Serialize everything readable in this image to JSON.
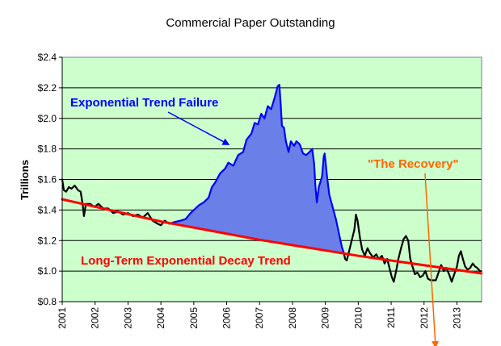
{
  "chart_data": {
    "type": "line",
    "title": "Commercial Paper Outstanding",
    "xlabel": "",
    "ylabel": "Trillions",
    "xlim": [
      2001.0,
      2013.75
    ],
    "ylim": [
      0.8,
      2.4
    ],
    "y_ticks": [
      0.8,
      1.0,
      1.2,
      1.4,
      1.6,
      1.8,
      2.0,
      2.2,
      2.4
    ],
    "y_tick_labels": [
      "$0.8",
      "$1.0",
      "$1.2",
      "$1.4",
      "$1.6",
      "$1.8",
      "$2.0",
      "$2.2",
      "$2.4"
    ],
    "x_ticks": [
      2001,
      2002,
      2003,
      2004,
      2005,
      2006,
      2007,
      2008,
      2009,
      2010,
      2011,
      2012,
      2013
    ],
    "x_tick_labels": [
      "2001",
      "2002",
      "2003",
      "2004",
      "2005",
      "2006",
      "2007",
      "2008",
      "2009",
      "2010",
      "2011",
      "2012",
      "2013"
    ],
    "grid": true,
    "colors": {
      "plot_bg": "#ccffcc",
      "actual": "#000000",
      "bubble": "#0000ff",
      "bubble_fill": "#6b7fe8",
      "trend": "#ff0000",
      "recovery": "#ff6600",
      "grid": "#000000"
    },
    "series": [
      {
        "name": "Commercial Paper Outstanding",
        "role": "actual",
        "points": [
          [
            2001.0,
            1.6
          ],
          [
            2001.05,
            1.53
          ],
          [
            2001.12,
            1.52
          ],
          [
            2001.2,
            1.55
          ],
          [
            2001.28,
            1.54
          ],
          [
            2001.38,
            1.56
          ],
          [
            2001.48,
            1.53
          ],
          [
            2001.56,
            1.52
          ],
          [
            2001.62,
            1.44
          ],
          [
            2001.66,
            1.36
          ],
          [
            2001.72,
            1.44
          ],
          [
            2001.85,
            1.44
          ],
          [
            2001.98,
            1.42
          ],
          [
            2002.1,
            1.44
          ],
          [
            2002.25,
            1.41
          ],
          [
            2002.4,
            1.41
          ],
          [
            2002.55,
            1.38
          ],
          [
            2002.7,
            1.39
          ],
          [
            2002.85,
            1.37
          ],
          [
            2003.0,
            1.38
          ],
          [
            2003.15,
            1.36
          ],
          [
            2003.3,
            1.37
          ],
          [
            2003.45,
            1.35
          ],
          [
            2003.6,
            1.38
          ],
          [
            2003.75,
            1.33
          ],
          [
            2003.9,
            1.31
          ],
          [
            2004.0,
            1.3
          ],
          [
            2004.12,
            1.33
          ],
          [
            2004.25,
            1.31
          ],
          [
            2004.4,
            1.32
          ]
        ]
      },
      {
        "name": "Exponential Trend Failure",
        "role": "bubble",
        "points": [
          [
            2004.4,
            1.32
          ],
          [
            2004.6,
            1.33
          ],
          [
            2004.75,
            1.34
          ],
          [
            2004.9,
            1.38
          ],
          [
            2005.05,
            1.41
          ],
          [
            2005.15,
            1.43
          ],
          [
            2005.3,
            1.45
          ],
          [
            2005.45,
            1.48
          ],
          [
            2005.55,
            1.55
          ],
          [
            2005.65,
            1.58
          ],
          [
            2005.8,
            1.64
          ],
          [
            2005.95,
            1.67
          ],
          [
            2006.05,
            1.71
          ],
          [
            2006.2,
            1.69
          ],
          [
            2006.35,
            1.76
          ],
          [
            2006.5,
            1.78
          ],
          [
            2006.6,
            1.86
          ],
          [
            2006.75,
            1.9
          ],
          [
            2006.85,
            1.97
          ],
          [
            2006.95,
            1.96
          ],
          [
            2007.05,
            2.03
          ],
          [
            2007.15,
            2.0
          ],
          [
            2007.25,
            2.08
          ],
          [
            2007.35,
            2.06
          ],
          [
            2007.45,
            2.13
          ],
          [
            2007.55,
            2.21
          ],
          [
            2007.6,
            2.22
          ],
          [
            2007.64,
            2.1
          ],
          [
            2007.68,
            1.95
          ],
          [
            2007.74,
            1.94
          ],
          [
            2007.8,
            1.85
          ],
          [
            2007.88,
            1.78
          ],
          [
            2007.95,
            1.85
          ],
          [
            2008.05,
            1.82
          ],
          [
            2008.12,
            1.85
          ],
          [
            2008.22,
            1.83
          ],
          [
            2008.32,
            1.77
          ],
          [
            2008.42,
            1.76
          ],
          [
            2008.52,
            1.78
          ],
          [
            2008.6,
            1.8
          ],
          [
            2008.66,
            1.7
          ],
          [
            2008.7,
            1.55
          ],
          [
            2008.74,
            1.45
          ],
          [
            2008.8,
            1.55
          ],
          [
            2008.9,
            1.62
          ],
          [
            2008.95,
            1.75
          ],
          [
            2008.98,
            1.77
          ],
          [
            2009.05,
            1.62
          ],
          [
            2009.12,
            1.5
          ],
          [
            2009.22,
            1.42
          ],
          [
            2009.32,
            1.34
          ],
          [
            2009.42,
            1.24
          ],
          [
            2009.5,
            1.16
          ],
          [
            2009.56,
            1.12
          ]
        ]
      },
      {
        "name": "The Recovery",
        "role": "actual",
        "points": [
          [
            2009.56,
            1.12
          ],
          [
            2009.6,
            1.08
          ],
          [
            2009.65,
            1.07
          ],
          [
            2009.72,
            1.13
          ],
          [
            2009.8,
            1.2
          ],
          [
            2009.88,
            1.27
          ],
          [
            2009.93,
            1.37
          ],
          [
            2009.98,
            1.33
          ],
          [
            2010.05,
            1.22
          ],
          [
            2010.12,
            1.14
          ],
          [
            2010.2,
            1.1
          ],
          [
            2010.28,
            1.15
          ],
          [
            2010.35,
            1.12
          ],
          [
            2010.45,
            1.09
          ],
          [
            2010.55,
            1.11
          ],
          [
            2010.62,
            1.08
          ],
          [
            2010.72,
            1.1
          ],
          [
            2010.8,
            1.05
          ],
          [
            2010.88,
            1.08
          ],
          [
            2010.95,
            1.02
          ],
          [
            2011.02,
            0.96
          ],
          [
            2011.08,
            0.93
          ],
          [
            2011.15,
            1.0
          ],
          [
            2011.22,
            1.08
          ],
          [
            2011.3,
            1.15
          ],
          [
            2011.38,
            1.21
          ],
          [
            2011.45,
            1.23
          ],
          [
            2011.52,
            1.2
          ],
          [
            2011.58,
            1.08
          ],
          [
            2011.65,
            1.03
          ],
          [
            2011.72,
            0.98
          ],
          [
            2011.8,
            0.99
          ],
          [
            2011.88,
            0.96
          ],
          [
            2011.96,
            0.97
          ],
          [
            2012.04,
            1.0
          ],
          [
            2012.12,
            0.95
          ],
          [
            2012.2,
            0.94
          ],
          [
            2012.28,
            0.94
          ],
          [
            2012.36,
            0.94
          ],
          [
            2012.44,
            0.99
          ],
          [
            2012.52,
            1.04
          ],
          [
            2012.6,
            1.0
          ],
          [
            2012.68,
            1.02
          ],
          [
            2012.76,
            0.98
          ],
          [
            2012.84,
            0.93
          ],
          [
            2012.92,
            0.98
          ],
          [
            2013.0,
            1.03
          ],
          [
            2013.06,
            1.1
          ],
          [
            2013.12,
            1.13
          ],
          [
            2013.18,
            1.08
          ],
          [
            2013.25,
            1.03
          ],
          [
            2013.32,
            1.01
          ],
          [
            2013.4,
            1.02
          ],
          [
            2013.48,
            1.05
          ],
          [
            2013.55,
            1.03
          ],
          [
            2013.62,
            1.02
          ],
          [
            2013.7,
            1.0
          ],
          [
            2013.75,
            1.0
          ]
        ]
      },
      {
        "name": "Long-Term Exponential Decay Trend",
        "role": "trend",
        "points": [
          [
            2001.0,
            1.47
          ],
          [
            2004.0,
            1.325
          ],
          [
            2007.0,
            1.205
          ],
          [
            2010.0,
            1.1
          ],
          [
            2013.75,
            0.985
          ]
        ]
      }
    ],
    "annotations": [
      {
        "text": "Exponential Trend Failure",
        "color": "#0000ff",
        "arrow_to": [
          2006.05,
          1.83
        ]
      },
      {
        "text": "\"The Recovery\"",
        "color": "#ff6600",
        "arrow_to": [
          2012.35,
          1.17
        ]
      },
      {
        "text": "Long-Term Exponential Decay Trend",
        "color": "#ff0000"
      }
    ]
  }
}
